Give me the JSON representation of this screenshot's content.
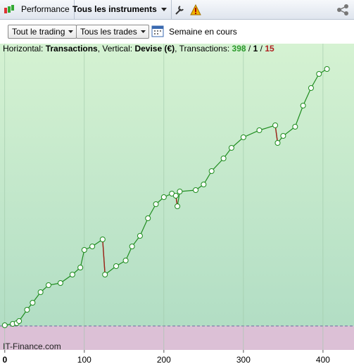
{
  "toolbar": {
    "tab1": "Performance",
    "tab2": "Tous les instruments"
  },
  "filters": {
    "trading": "Tout le trading",
    "trades": "Tous les trades",
    "period": "Semaine en cours"
  },
  "info": {
    "h_label": "Horizontal:",
    "h_value": "Transactions",
    "v_label": ", Vertical:",
    "v_value": "Devise (€)",
    "count_label": ", Transactions:",
    "wins": "398",
    "separator": "/",
    "breakeven": "1",
    "losses": "15"
  },
  "chart_data": {
    "type": "line",
    "watermark": "IT-Finance.com",
    "x": [
      0,
      10,
      15,
      18,
      28,
      35,
      45,
      55,
      70,
      85,
      95,
      100,
      110,
      123,
      126,
      140,
      152,
      160,
      170,
      180,
      190,
      200,
      210,
      215,
      217,
      220,
      240,
      250,
      260,
      275,
      285,
      300,
      320,
      340,
      343,
      350,
      365,
      375,
      385,
      395,
      405
    ],
    "series": [
      {
        "color": "#1e8c1e",
        "down_color": "#a0201a",
        "values": [
          1,
          3,
          4,
          7,
          23,
          33,
          48,
          58,
          61,
          73,
          83,
          108,
          113,
          123,
          73,
          85,
          93,
          113,
          128,
          153,
          173,
          183,
          188,
          185,
          170,
          191,
          193,
          201,
          220,
          238,
          253,
          268,
          278,
          285,
          260,
          270,
          283,
          313,
          338,
          358,
          365
        ]
      }
    ],
    "xlim": [
      -6,
      439
    ],
    "ylim": [
      -34,
      385
    ],
    "xticks": [
      0,
      100,
      200,
      300,
      400
    ]
  }
}
